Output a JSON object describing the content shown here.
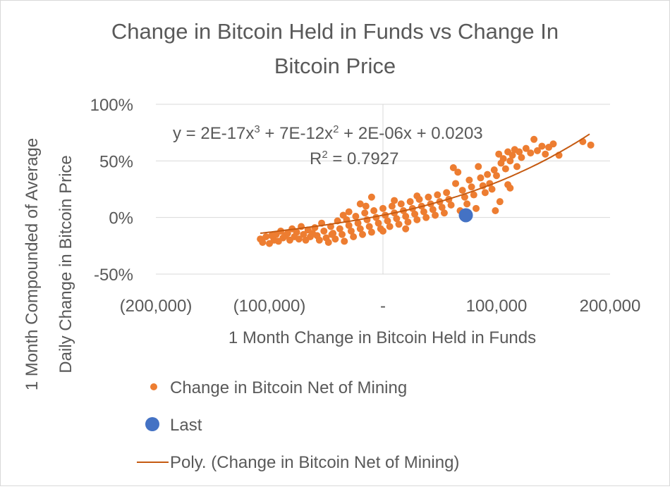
{
  "chart_data": {
    "type": "scatter",
    "title_line1": "Change in Bitcoin Held in Funds vs Change In",
    "title_line2": "Bitcoin Price",
    "xlabel": "1 Month Change in Bitcoin Held in Funds",
    "ylabel_line1": "1 Month Compounded  of Average",
    "ylabel_line2": "Daily Change in Bitcoin Price",
    "xlim": [
      -200000,
      200000
    ],
    "ylim": [
      -0.5,
      1.0
    ],
    "x_ticks": [
      -200000,
      -100000,
      0,
      100000,
      200000
    ],
    "x_tick_labels": [
      "(200,000)",
      "(100,000)",
      "-",
      "100,000",
      "200,000"
    ],
    "y_ticks": [
      -0.5,
      0,
      0.5,
      1.0
    ],
    "y_tick_labels": [
      "-50%",
      "0%",
      "50%",
      "100%"
    ],
    "grid": "horizontal",
    "legend_position": "bottom",
    "colors": {
      "series": "#ed7d31",
      "last": "#4472c4",
      "trend": "#c55a11"
    },
    "trendline": {
      "type": "polynomial",
      "equation_prefix": "y = 2E-17x",
      "eq_sup1": "3",
      "equation_mid": " + 7E-12x",
      "eq_sup2": "2",
      "equation_suffix": " + 2E-06x + 0.0203",
      "r2_prefix": "R",
      "r2_sup": "2",
      "r2_suffix": " = 0.7927",
      "coefficients": [
        2e-17,
        7e-12,
        2e-06,
        0.0203
      ],
      "x_range": [
        -108000,
        182000
      ]
    },
    "series": [
      {
        "name": "Change in Bitcoin Net of Mining",
        "points": [
          [
            -108000,
            -0.19
          ],
          [
            -106000,
            -0.22
          ],
          [
            -103000,
            -0.17
          ],
          [
            -100000,
            -0.23
          ],
          [
            -98000,
            -0.16
          ],
          [
            -96000,
            -0.2
          ],
          [
            -94000,
            -0.15
          ],
          [
            -92000,
            -0.21
          ],
          [
            -90000,
            -0.12
          ],
          [
            -88000,
            -0.18
          ],
          [
            -86000,
            -0.16
          ],
          [
            -84000,
            -0.14
          ],
          [
            -82000,
            -0.2
          ],
          [
            -80000,
            -0.1
          ],
          [
            -78000,
            -0.17
          ],
          [
            -76000,
            -0.13
          ],
          [
            -74000,
            -0.19
          ],
          [
            -72000,
            -0.08
          ],
          [
            -70000,
            -0.15
          ],
          [
            -68000,
            -0.2
          ],
          [
            -66000,
            -0.11
          ],
          [
            -64000,
            -0.17
          ],
          [
            -62000,
            -0.14
          ],
          [
            -60000,
            -0.09
          ],
          [
            -58000,
            -0.16
          ],
          [
            -56000,
            -0.2
          ],
          [
            -54000,
            -0.05
          ],
          [
            -52000,
            -0.12
          ],
          [
            -50000,
            -0.18
          ],
          [
            -48000,
            -0.22
          ],
          [
            -46000,
            -0.08
          ],
          [
            -44000,
            -0.14
          ],
          [
            -42000,
            -0.19
          ],
          [
            -40000,
            -0.03
          ],
          [
            -38000,
            -0.1
          ],
          [
            -36000,
            -0.15
          ],
          [
            -34000,
            -0.21
          ],
          [
            -32000,
            -0.02
          ],
          [
            -30000,
            -0.07
          ],
          [
            -28000,
            -0.12
          ],
          [
            -26000,
            -0.17
          ],
          [
            -24000,
            0.01
          ],
          [
            -22000,
            -0.05
          ],
          [
            -20000,
            -0.1
          ],
          [
            -18000,
            -0.15
          ],
          [
            -16000,
            0.04
          ],
          [
            -14000,
            -0.02
          ],
          [
            -12000,
            -0.08
          ],
          [
            -10000,
            -0.13
          ],
          [
            -8000,
            0.06
          ],
          [
            -6000,
            0.0
          ],
          [
            -4000,
            -0.05
          ],
          [
            -2000,
            -0.1
          ],
          [
            0,
            0.08
          ],
          [
            2000,
            0.02
          ],
          [
            4000,
            -0.03
          ],
          [
            6000,
            -0.08
          ],
          [
            8000,
            0.1
          ],
          [
            10000,
            0.04
          ],
          [
            12000,
            -0.01
          ],
          [
            14000,
            -0.06
          ],
          [
            16000,
            0.12
          ],
          [
            18000,
            0.06
          ],
          [
            20000,
            0.01
          ],
          [
            22000,
            -0.04
          ],
          [
            24000,
            0.14
          ],
          [
            26000,
            0.08
          ],
          [
            28000,
            0.03
          ],
          [
            30000,
            -0.02
          ],
          [
            32000,
            0.16
          ],
          [
            34000,
            0.1
          ],
          [
            36000,
            0.05
          ],
          [
            38000,
            0.0
          ],
          [
            40000,
            0.18
          ],
          [
            42000,
            0.12
          ],
          [
            44000,
            0.07
          ],
          [
            46000,
            0.02
          ],
          [
            48000,
            0.2
          ],
          [
            50000,
            0.14
          ],
          [
            52000,
            0.09
          ],
          [
            54000,
            0.04
          ],
          [
            56000,
            0.22
          ],
          [
            58000,
            0.16
          ],
          [
            60000,
            0.11
          ],
          [
            62000,
            0.44
          ],
          [
            64000,
            0.3
          ],
          [
            66000,
            0.4
          ],
          [
            68000,
            0.06
          ],
          [
            70000,
            0.24
          ],
          [
            72000,
            0.18
          ],
          [
            74000,
            0.12
          ],
          [
            76000,
            0.33
          ],
          [
            78000,
            0.27
          ],
          [
            80000,
            0.2
          ],
          [
            82000,
            0.08
          ],
          [
            84000,
            0.45
          ],
          [
            86000,
            0.35
          ],
          [
            88000,
            0.28
          ],
          [
            90000,
            0.22
          ],
          [
            92000,
            0.38
          ],
          [
            94000,
            0.3
          ],
          [
            96000,
            0.25
          ],
          [
            98000,
            0.42
          ],
          [
            100000,
            0.37
          ],
          [
            102000,
            0.56
          ],
          [
            104000,
            0.48
          ],
          [
            106000,
            0.52
          ],
          [
            108000,
            0.43
          ],
          [
            110000,
            0.58
          ],
          [
            112000,
            0.5
          ],
          [
            114000,
            0.55
          ],
          [
            116000,
            0.6
          ],
          [
            118000,
            0.45
          ],
          [
            120000,
            0.58
          ],
          [
            122000,
            0.53
          ],
          [
            126000,
            0.61
          ],
          [
            130000,
            0.57
          ],
          [
            133000,
            0.69
          ],
          [
            136000,
            0.59
          ],
          [
            140000,
            0.63
          ],
          [
            143000,
            0.56
          ],
          [
            146000,
            0.62
          ],
          [
            150000,
            0.65
          ],
          [
            155000,
            0.55
          ],
          [
            176000,
            0.67
          ],
          [
            183000,
            0.64
          ],
          [
            103000,
            0.14
          ],
          [
            110000,
            0.29
          ],
          [
            112000,
            0.26
          ],
          [
            99000,
            0.06
          ],
          [
            -30000,
            0.05
          ],
          [
            -20000,
            0.12
          ],
          [
            -10000,
            0.18
          ],
          [
            0,
            -0.12
          ],
          [
            10000,
            0.15
          ],
          [
            20000,
            -0.1
          ],
          [
            30000,
            0.19
          ],
          [
            -45000,
            -0.15
          ],
          [
            -35000,
            0.02
          ],
          [
            -15000,
            0.1
          ]
        ]
      },
      {
        "name": "Last",
        "points": [
          [
            73000,
            0.02
          ]
        ]
      }
    ],
    "legend": [
      {
        "label": "Change in Bitcoin Net of Mining",
        "marker": "dot"
      },
      {
        "label": "Last",
        "marker": "big-dot"
      },
      {
        "label": "Poly. (Change in Bitcoin Net of Mining)",
        "marker": "line"
      }
    ]
  }
}
